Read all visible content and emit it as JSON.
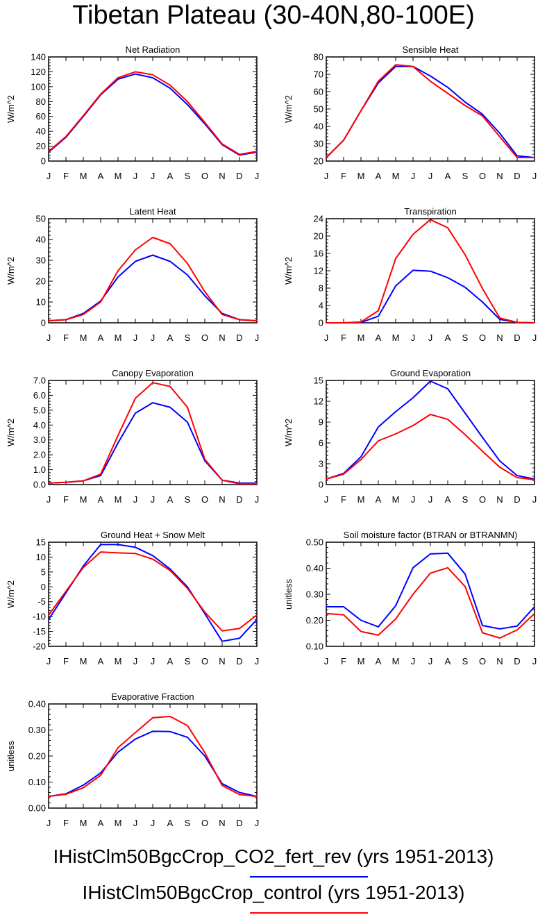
{
  "title": "Tibetan Plateau (30-40N,80-100E)",
  "colors": {
    "blue": "#0000ff",
    "red": "#ff0000"
  },
  "months": [
    "J",
    "F",
    "M",
    "A",
    "M",
    "J",
    "J",
    "A",
    "S",
    "O",
    "N",
    "D",
    "J"
  ],
  "legend": [
    {
      "label": "IHistClm50BgcCrop_CO2_fert_rev (yrs 1951-2013)",
      "color": "#0000ff"
    },
    {
      "label": "IHistClm50BgcCrop_control (yrs 1951-2013)",
      "color": "#ff0000"
    }
  ],
  "chart_data": [
    {
      "type": "line",
      "title": "Net Radiation",
      "ylabel": "W/m^2",
      "ylim": [
        0,
        140
      ],
      "yticks": [
        "0",
        "20",
        "40",
        "60",
        "80",
        "100",
        "120",
        "140"
      ],
      "series": [
        {
          "color": "#0000ff",
          "values": [
            12,
            32,
            60,
            89,
            110,
            117,
            112,
            98,
            76,
            50,
            22,
            8,
            12
          ]
        },
        {
          "color": "#ff0000",
          "values": [
            13,
            33,
            61,
            90,
            112,
            120,
            116,
            102,
            80,
            52,
            23,
            9,
            13
          ]
        }
      ]
    },
    {
      "type": "line",
      "title": "Sensible Heat",
      "ylabel": "W/m^2",
      "ylim": [
        20,
        80
      ],
      "yticks": [
        "20",
        "30",
        "40",
        "50",
        "60",
        "70",
        "80"
      ],
      "series": [
        {
          "color": "#0000ff",
          "values": [
            22,
            32,
            49,
            65,
            74.5,
            74.5,
            69,
            62.5,
            54,
            47,
            36,
            23,
            22
          ]
        },
        {
          "color": "#ff0000",
          "values": [
            22,
            32,
            49,
            66,
            75.5,
            74.5,
            66,
            59,
            52,
            46,
            34,
            22,
            22
          ]
        }
      ]
    },
    {
      "type": "line",
      "title": "Latent Heat",
      "ylabel": "W/m^2",
      "ylim": [
        0,
        50
      ],
      "yticks": [
        "0",
        "10",
        "20",
        "30",
        "40",
        "50"
      ],
      "series": [
        {
          "color": "#0000ff",
          "values": [
            1,
            1.5,
            4.5,
            10.5,
            22,
            29.5,
            32.5,
            29.5,
            23,
            13,
            4.5,
            1.5,
            1
          ]
        },
        {
          "color": "#ff0000",
          "values": [
            1,
            1.5,
            4,
            10,
            25,
            35,
            41,
            38,
            28.5,
            15,
            4,
            1.5,
            1
          ]
        }
      ]
    },
    {
      "type": "line",
      "title": "Transpiration",
      "ylabel": "W/m^2",
      "ylim": [
        0,
        24
      ],
      "yticks": [
        "0",
        "4",
        "8",
        "12",
        "16",
        "20",
        "24"
      ],
      "series": [
        {
          "color": "#0000ff",
          "values": [
            0,
            0,
            0.1,
            1.5,
            8.5,
            12.1,
            11.9,
            10.4,
            8.2,
            4.8,
            0.8,
            0.1,
            0
          ]
        },
        {
          "color": "#ff0000",
          "values": [
            0,
            0,
            0.2,
            2.8,
            14.8,
            20.4,
            23.8,
            21.9,
            15.7,
            7.9,
            1.1,
            0.1,
            0
          ]
        }
      ]
    },
    {
      "type": "line",
      "title": "Canopy Evaporation",
      "ylabel": "W/m^2",
      "ylim": [
        0,
        7
      ],
      "yticks": [
        "0.0",
        "1.0",
        "2.0",
        "3.0",
        "4.0",
        "5.0",
        "6.0",
        "7.0"
      ],
      "series": [
        {
          "color": "#0000ff",
          "values": [
            0.1,
            0.15,
            0.25,
            0.6,
            2.8,
            4.8,
            5.5,
            5.2,
            4.2,
            1.6,
            0.3,
            0.1,
            0.1
          ]
        },
        {
          "color": "#ff0000",
          "values": [
            0.1,
            0.15,
            0.25,
            0.7,
            3.3,
            5.8,
            6.85,
            6.6,
            5.2,
            1.7,
            0.3,
            0.05,
            0.05
          ]
        }
      ]
    },
    {
      "type": "line",
      "title": "Ground Evaporation",
      "ylabel": "W/m^2",
      "ylim": [
        0,
        15
      ],
      "yticks": [
        "0",
        "3",
        "6",
        "9",
        "12",
        "15"
      ],
      "series": [
        {
          "color": "#0000ff",
          "values": [
            0.8,
            1.6,
            4,
            8.3,
            10.5,
            12.5,
            14.9,
            13.8,
            10.3,
            6.8,
            3.4,
            1.3,
            0.8
          ]
        },
        {
          "color": "#ff0000",
          "values": [
            0.8,
            1.5,
            3.6,
            6.3,
            7.3,
            8.5,
            10.1,
            9.4,
            7.2,
            4.8,
            2.5,
            1,
            0.7
          ]
        }
      ]
    },
    {
      "type": "line",
      "title": "Ground Heat + Snow Melt",
      "ylabel": "W/m^2",
      "ylim": [
        -20,
        15
      ],
      "yticks": [
        "-20",
        "-15",
        "-10",
        "-5",
        "0",
        "5",
        "10",
        "15"
      ],
      "series": [
        {
          "color": "#0000ff",
          "values": [
            -11,
            -2,
            7,
            14.2,
            14.2,
            13.3,
            10.5,
            6,
            0,
            -9,
            -18.3,
            -17.3,
            -11
          ]
        },
        {
          "color": "#ff0000",
          "values": [
            -9.5,
            -1.5,
            6.5,
            11.7,
            11.4,
            11.2,
            9.3,
            5.5,
            -0.5,
            -8.5,
            -14.8,
            -14,
            -9.5
          ]
        }
      ]
    },
    {
      "type": "line",
      "title": "Soil moisture factor (BTRAN or BTRANMN)",
      "ylabel": "unitless",
      "ylim": [
        0.1,
        0.5
      ],
      "yticks": [
        "0.10",
        "0.20",
        "0.30",
        "0.40",
        "0.50"
      ],
      "series": [
        {
          "color": "#0000ff",
          "values": [
            0.252,
            0.252,
            0.2,
            0.175,
            0.256,
            0.402,
            0.455,
            0.458,
            0.378,
            0.18,
            0.167,
            0.178,
            0.252
          ]
        },
        {
          "color": "#ff0000",
          "values": [
            0.226,
            0.221,
            0.157,
            0.143,
            0.205,
            0.3,
            0.381,
            0.402,
            0.33,
            0.152,
            0.132,
            0.163,
            0.226
          ]
        }
      ]
    },
    {
      "type": "line",
      "title": "Evaporative Fraction",
      "ylabel": "unitless",
      "ylim": [
        0,
        0.4
      ],
      "yticks": [
        "0.00",
        "0.10",
        "0.20",
        "0.30",
        "0.40"
      ],
      "series": [
        {
          "color": "#0000ff",
          "values": [
            0.045,
            0.055,
            0.088,
            0.135,
            0.215,
            0.265,
            0.295,
            0.294,
            0.272,
            0.2,
            0.094,
            0.06,
            0.045
          ]
        },
        {
          "color": "#ff0000",
          "values": [
            0.045,
            0.053,
            0.078,
            0.126,
            0.232,
            0.29,
            0.347,
            0.352,
            0.317,
            0.213,
            0.087,
            0.052,
            0.045
          ]
        }
      ]
    }
  ]
}
